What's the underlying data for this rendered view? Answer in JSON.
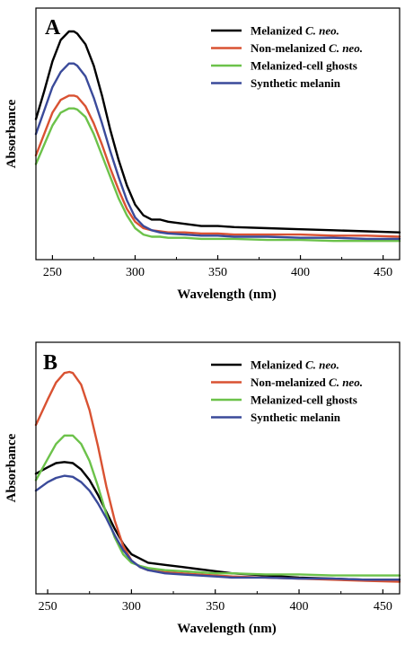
{
  "chart_data": [
    {
      "type": "line",
      "panel_label": "A",
      "title": "",
      "xlabel": "Wavelength (nm)",
      "ylabel": "Absorbance",
      "xlim": [
        240,
        460
      ],
      "ylim": [
        0,
        1
      ],
      "xticks": [
        250,
        300,
        350,
        400,
        450
      ],
      "show_y_ticks": false,
      "grid": false,
      "legend_position": "top-right",
      "series": [
        {
          "name_plain": "Melanized ",
          "name_italic": "C. neo.",
          "color": "#000000",
          "x": [
            240,
            245,
            250,
            255,
            260,
            263,
            265,
            270,
            275,
            280,
            285,
            290,
            295,
            300,
            305,
            310,
            315,
            320,
            330,
            340,
            350,
            360,
            380,
            400,
            420,
            440,
            460
          ],
          "y": [
            0.59,
            0.72,
            0.86,
            0.96,
            1.0,
            1.0,
            0.99,
            0.94,
            0.84,
            0.7,
            0.54,
            0.4,
            0.28,
            0.19,
            0.14,
            0.12,
            0.12,
            0.11,
            0.1,
            0.09,
            0.09,
            0.085,
            0.08,
            0.075,
            0.07,
            0.065,
            0.06
          ]
        },
        {
          "name_plain": "Non-melanized ",
          "name_italic": "C. neo.",
          "color": "#d95232",
          "x": [
            240,
            245,
            250,
            255,
            260,
            263,
            265,
            270,
            275,
            280,
            285,
            290,
            295,
            300,
            305,
            310,
            315,
            320,
            330,
            340,
            350,
            360,
            380,
            400,
            420,
            440,
            460
          ],
          "y": [
            0.42,
            0.52,
            0.62,
            0.68,
            0.7,
            0.7,
            0.695,
            0.65,
            0.57,
            0.47,
            0.36,
            0.26,
            0.17,
            0.11,
            0.08,
            0.07,
            0.065,
            0.06,
            0.06,
            0.055,
            0.055,
            0.05,
            0.05,
            0.05,
            0.045,
            0.045,
            0.04
          ]
        },
        {
          "name_plain": "Melanized-cell ghosts",
          "name_italic": "",
          "color": "#6cc24a",
          "x": [
            240,
            245,
            250,
            255,
            260,
            263,
            265,
            270,
            275,
            280,
            285,
            290,
            295,
            300,
            305,
            310,
            315,
            320,
            330,
            340,
            350,
            360,
            380,
            400,
            420,
            440,
            460
          ],
          "y": [
            0.38,
            0.47,
            0.56,
            0.62,
            0.64,
            0.64,
            0.635,
            0.6,
            0.52,
            0.42,
            0.32,
            0.22,
            0.14,
            0.08,
            0.05,
            0.04,
            0.04,
            0.035,
            0.035,
            0.03,
            0.03,
            0.03,
            0.025,
            0.025,
            0.02,
            0.02,
            0.02
          ]
        },
        {
          "name_plain": "Synthetic melanin",
          "name_italic": "",
          "color": "#3a4a9a",
          "x": [
            240,
            245,
            250,
            255,
            260,
            263,
            265,
            270,
            275,
            280,
            285,
            290,
            295,
            300,
            305,
            310,
            315,
            320,
            330,
            340,
            350,
            360,
            380,
            400,
            420,
            440,
            460
          ],
          "y": [
            0.52,
            0.63,
            0.74,
            0.81,
            0.85,
            0.85,
            0.84,
            0.79,
            0.69,
            0.57,
            0.44,
            0.32,
            0.21,
            0.13,
            0.09,
            0.07,
            0.06,
            0.055,
            0.05,
            0.045,
            0.045,
            0.04,
            0.04,
            0.035,
            0.035,
            0.03,
            0.03
          ]
        }
      ]
    },
    {
      "type": "line",
      "panel_label": "B",
      "title": "",
      "xlabel": "Wavelength (nm)",
      "ylabel": "Absorbance",
      "xlim": [
        243,
        460
      ],
      "ylim": [
        0,
        1
      ],
      "xticks": [
        250,
        300,
        350,
        400,
        450
      ],
      "show_y_ticks": false,
      "grid": false,
      "legend_position": "top-right",
      "series": [
        {
          "name_plain": "Melanized ",
          "name_italic": "C. neo.",
          "color": "#000000",
          "x": [
            243,
            250,
            255,
            260,
            265,
            270,
            275,
            280,
            285,
            290,
            295,
            300,
            305,
            310,
            320,
            330,
            340,
            350,
            360,
            380,
            400,
            420,
            440,
            460
          ],
          "y": [
            0.52,
            0.55,
            0.57,
            0.575,
            0.57,
            0.54,
            0.49,
            0.42,
            0.34,
            0.26,
            0.19,
            0.14,
            0.12,
            0.1,
            0.09,
            0.08,
            0.07,
            0.06,
            0.05,
            0.04,
            0.03,
            0.025,
            0.02,
            0.02
          ]
        },
        {
          "name_plain": "Non-melanized ",
          "name_italic": "C. neo.",
          "color": "#d95232",
          "x": [
            243,
            250,
            255,
            260,
            263,
            265,
            270,
            275,
            280,
            285,
            290,
            295,
            300,
            305,
            310,
            320,
            330,
            340,
            350,
            360,
            380,
            400,
            420,
            440,
            460
          ],
          "y": [
            0.75,
            0.87,
            0.95,
            0.995,
            1.0,
            0.995,
            0.94,
            0.82,
            0.65,
            0.46,
            0.3,
            0.18,
            0.11,
            0.08,
            0.065,
            0.055,
            0.05,
            0.045,
            0.04,
            0.035,
            0.03,
            0.025,
            0.02,
            0.015,
            0.01
          ]
        },
        {
          "name_plain": "Melanized-cell ghosts",
          "name_italic": "",
          "color": "#6cc24a",
          "x": [
            243,
            250,
            255,
            260,
            265,
            270,
            275,
            280,
            285,
            290,
            295,
            300,
            305,
            310,
            320,
            330,
            340,
            350,
            360,
            380,
            400,
            420,
            440,
            460
          ],
          "y": [
            0.49,
            0.59,
            0.66,
            0.7,
            0.7,
            0.66,
            0.58,
            0.46,
            0.33,
            0.22,
            0.14,
            0.1,
            0.085,
            0.075,
            0.065,
            0.06,
            0.055,
            0.05,
            0.05,
            0.045,
            0.045,
            0.04,
            0.04,
            0.04
          ]
        },
        {
          "name_plain": "Synthetic melanin",
          "name_italic": "",
          "color": "#3a4a9a",
          "x": [
            243,
            250,
            255,
            260,
            265,
            270,
            275,
            280,
            285,
            290,
            295,
            300,
            305,
            310,
            320,
            330,
            340,
            350,
            360,
            380,
            400,
            420,
            440,
            460
          ],
          "y": [
            0.44,
            0.48,
            0.5,
            0.51,
            0.505,
            0.48,
            0.44,
            0.38,
            0.31,
            0.23,
            0.16,
            0.11,
            0.08,
            0.065,
            0.05,
            0.045,
            0.04,
            0.035,
            0.03,
            0.03,
            0.025,
            0.025,
            0.02,
            0.02
          ]
        }
      ]
    }
  ]
}
